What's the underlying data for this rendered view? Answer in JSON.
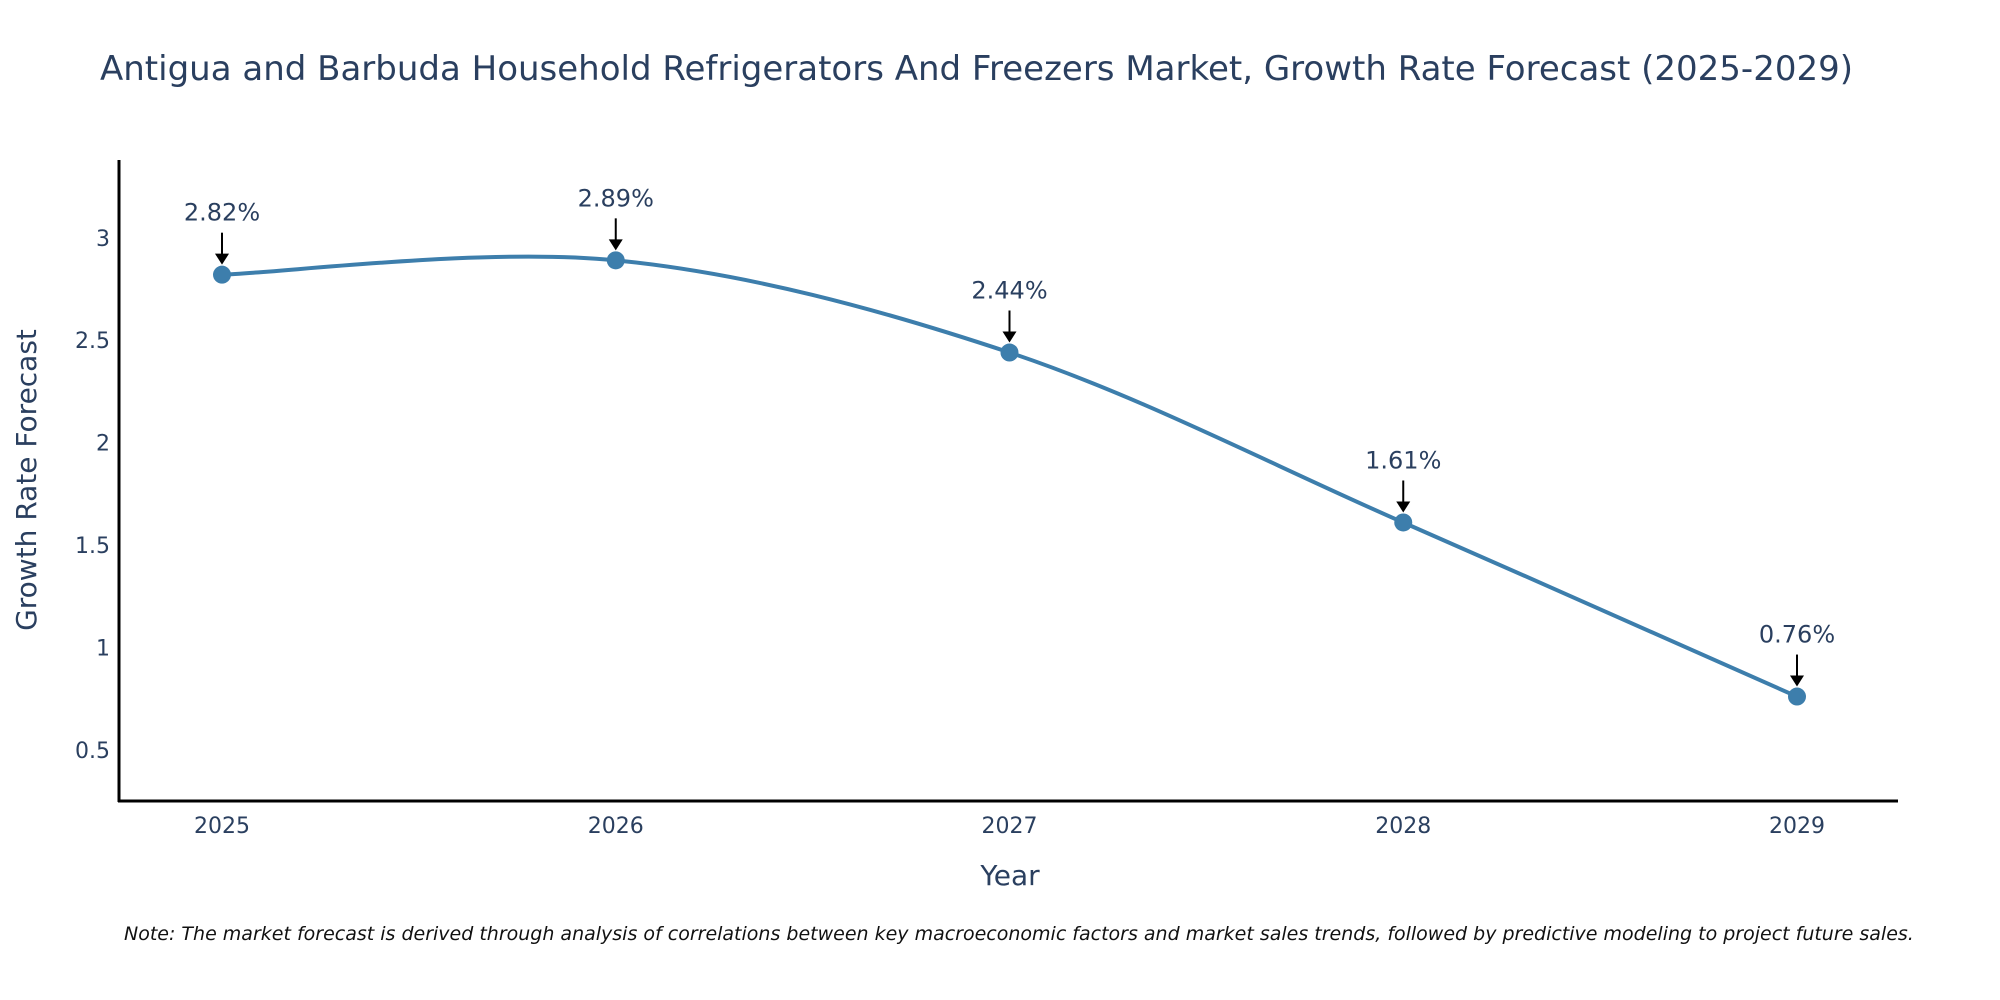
{
  "chart_data": {
    "type": "line",
    "title": "Antigua and Barbuda Household Refrigerators And Freezers Market, Growth Rate Forecast (2025-2029)",
    "xlabel": "Year",
    "ylabel": "Growth Rate Forecast",
    "categories": [
      "2025",
      "2026",
      "2027",
      "2028",
      "2029"
    ],
    "values": [
      2.82,
      2.89,
      2.44,
      1.61,
      0.76
    ],
    "data_labels": [
      "2.82%",
      "2.89%",
      "2.44%",
      "1.61%",
      "0.76%"
    ],
    "y_ticks": [
      0.5,
      1,
      1.5,
      2,
      2.5,
      3
    ],
    "y_tick_labels": [
      "0.5",
      "1",
      "1.5",
      "2",
      "2.5",
      "3"
    ],
    "ylim": [
      0.25,
      3.38
    ],
    "grid": false,
    "legend": "none",
    "line_color": "#3d7eac",
    "marker_color": "#3d7eac",
    "axis_color": "#000000",
    "text_color": "#2a3f5f"
  },
  "note": "Note: The market forecast is derived through analysis of correlations between key macroeconomic factors and market sales trends, followed by predictive modeling to project future sales."
}
